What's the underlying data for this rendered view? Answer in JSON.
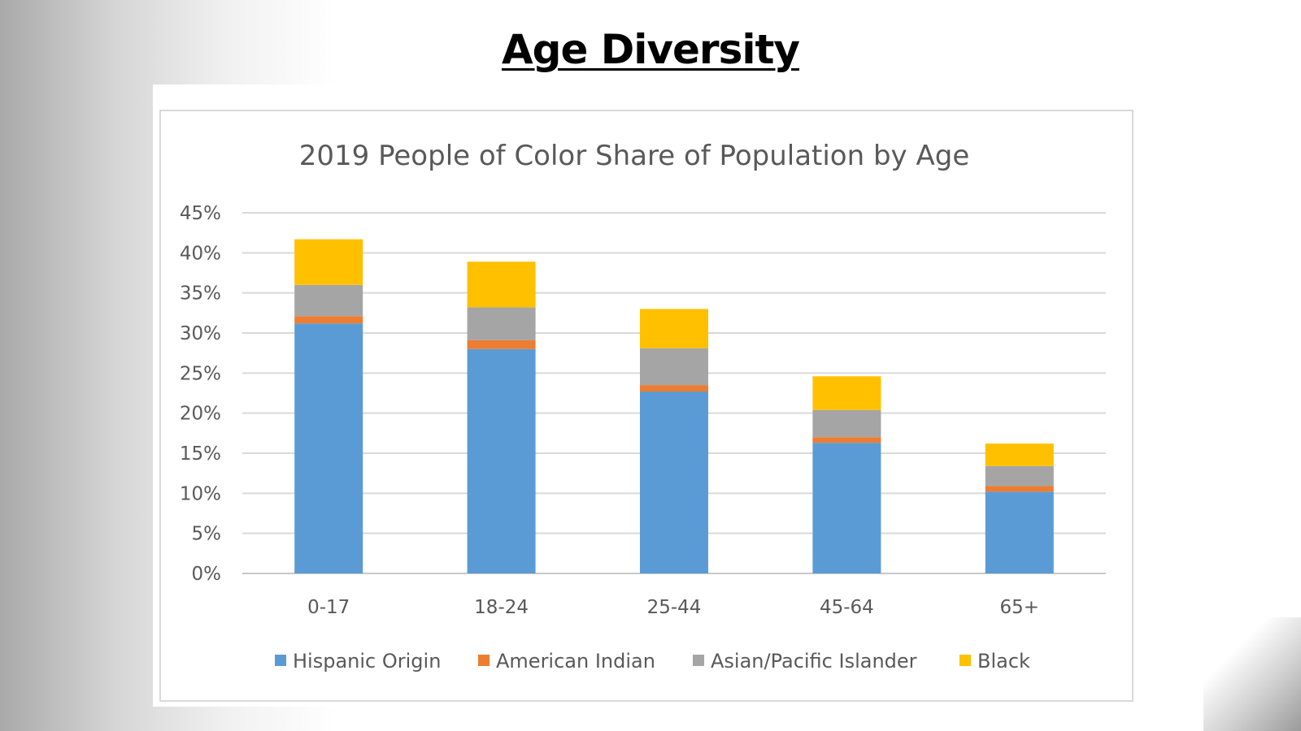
{
  "slide": {
    "title": "Age Diversity"
  },
  "chart_data": {
    "type": "bar",
    "stacked": true,
    "title": "2019 People of Color Share of Population by Age",
    "categories": [
      "0-17",
      "18-24",
      "25-44",
      "45-64",
      "65+"
    ],
    "series": [
      {
        "name": "Hispanic Origin",
        "color": "#5B9BD5",
        "values": [
          31.2,
          28.0,
          22.7,
          16.3,
          10.2
        ]
      },
      {
        "name": "American Indian",
        "color": "#ED7D31",
        "values": [
          0.9,
          1.1,
          0.8,
          0.7,
          0.7
        ]
      },
      {
        "name": "Asian/Pacific Islander",
        "color": "#A5A5A5",
        "values": [
          3.9,
          4.1,
          4.6,
          3.4,
          2.5
        ]
      },
      {
        "name": "Black",
        "color": "#FFC000",
        "values": [
          5.7,
          5.7,
          4.9,
          4.2,
          2.8
        ]
      }
    ],
    "ylim": [
      0,
      45
    ],
    "yticks": [
      "0%",
      "5%",
      "10%",
      "15%",
      "20%",
      "25%",
      "30%",
      "35%",
      "40%",
      "45%"
    ],
    "grid": true,
    "legend": "bottom"
  }
}
